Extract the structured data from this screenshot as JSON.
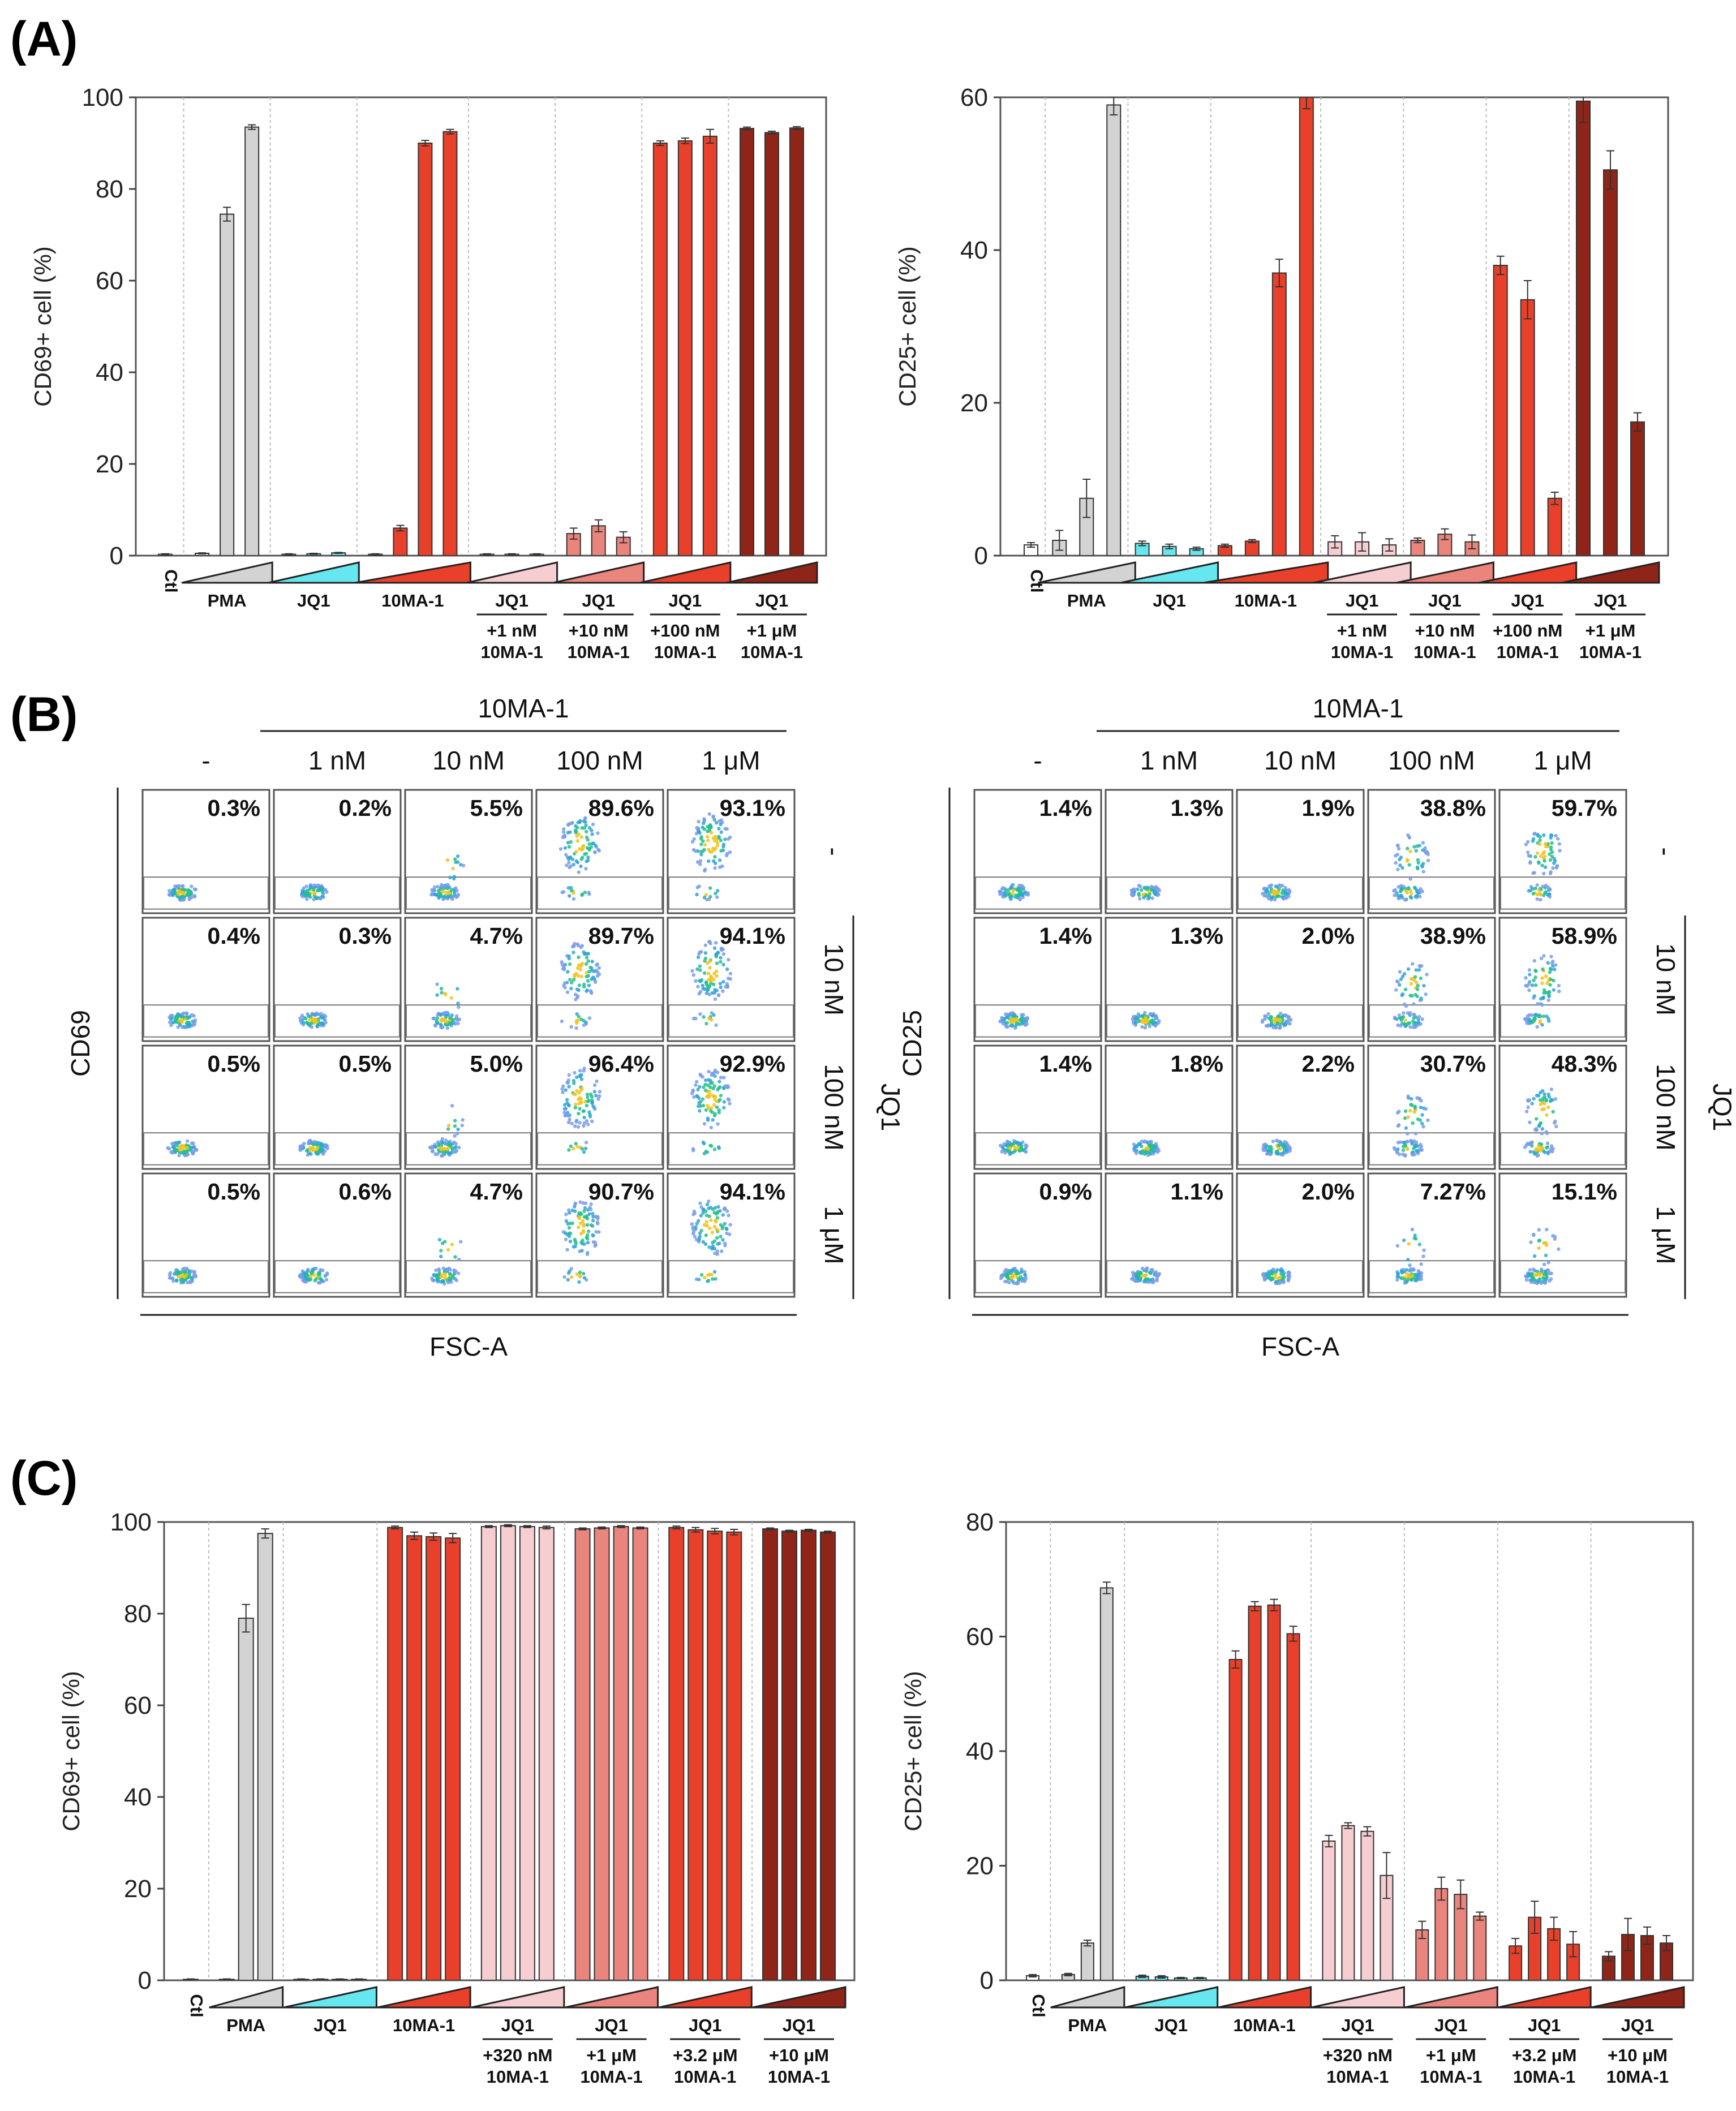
{
  "labels": {
    "a": "(A)",
    "b": "(B)",
    "c": "(C)"
  },
  "colors": {
    "Ctl": "#ffffff",
    "PMA": "#d3d3d3",
    "JQ1": "#66e6ee",
    "10MA-1": "#e8402a",
    "lightpink": "#f6cdd0",
    "salmon": "#e9857c",
    "red": "#e8402a",
    "darkred": "#8f2418"
  },
  "chart_data": [
    {
      "id": "a1",
      "panel": "A",
      "type": "bar",
      "ylabel": "CD69+ cell (%)",
      "ylim": [
        0,
        100
      ],
      "yticks": [
        0,
        20,
        40,
        60,
        80,
        100
      ],
      "groups": [
        {
          "name": "Ctl",
          "sub": [],
          "color": "Ctl",
          "values": [
            0.3
          ],
          "errors": [
            0.1
          ]
        },
        {
          "name": "PMA",
          "sub": [],
          "color": "PMA",
          "values": [
            0.5,
            74.5,
            93.5
          ],
          "errors": [
            0.1,
            1.5,
            0.5
          ]
        },
        {
          "name": "JQ1",
          "sub": [],
          "color": "JQ1",
          "values": [
            0.3,
            0.4,
            0.6
          ],
          "errors": [
            0.1,
            0.1,
            0.1
          ]
        },
        {
          "name": "10MA-1",
          "sub": [],
          "color": "10MA-1",
          "values": [
            0.3,
            6.0,
            90.0,
            92.5
          ],
          "errors": [
            0.1,
            0.6,
            0.6,
            0.5
          ]
        },
        {
          "name": "JQ1",
          "sub": [
            "+1 nM",
            "10MA-1"
          ],
          "color": "lightpink",
          "values": [
            0.3,
            0.3,
            0.3
          ],
          "errors": [
            0.1,
            0.1,
            0.1
          ]
        },
        {
          "name": "JQ1",
          "sub": [
            "+10 nM",
            "10MA-1"
          ],
          "color": "salmon",
          "values": [
            4.8,
            6.5,
            4.0
          ],
          "errors": [
            1.2,
            1.3,
            1.2
          ]
        },
        {
          "name": "JQ1",
          "sub": [
            "+100 nM",
            "10MA-1"
          ],
          "color": "red",
          "values": [
            90.0,
            90.5,
            91.5
          ],
          "errors": [
            0.5,
            0.6,
            1.5
          ]
        },
        {
          "name": "JQ1",
          "sub": [
            "+1 μM",
            "10MA-1"
          ],
          "color": "darkred",
          "values": [
            93.2,
            92.3,
            93.3
          ],
          "errors": [
            0.3,
            0.3,
            0.3
          ]
        }
      ]
    },
    {
      "id": "a2",
      "panel": "A",
      "type": "bar",
      "ylabel": "CD25+ cell (%)",
      "ylim": [
        0,
        60
      ],
      "yticks": [
        0,
        20,
        40,
        60
      ],
      "groups": [
        {
          "name": "Ctl",
          "sub": [],
          "color": "Ctl",
          "values": [
            1.4
          ],
          "errors": [
            0.3
          ]
        },
        {
          "name": "PMA",
          "sub": [],
          "color": "PMA",
          "values": [
            2.0,
            7.5,
            59.0
          ],
          "errors": [
            1.3,
            2.5,
            1.3
          ]
        },
        {
          "name": "JQ1",
          "sub": [],
          "color": "JQ1",
          "values": [
            1.6,
            1.2,
            0.9
          ],
          "errors": [
            0.3,
            0.3,
            0.2
          ]
        },
        {
          "name": "10MA-1",
          "sub": [],
          "color": "10MA-1",
          "values": [
            1.3,
            1.9,
            37.0,
            60.0
          ],
          "errors": [
            0.2,
            0.2,
            1.8,
            1.5
          ]
        },
        {
          "name": "JQ1",
          "sub": [
            "+1 nM",
            "10MA-1"
          ],
          "color": "lightpink",
          "values": [
            1.8,
            1.8,
            1.4
          ],
          "errors": [
            0.8,
            1.2,
            0.8
          ]
        },
        {
          "name": "JQ1",
          "sub": [
            "+10 nM",
            "10MA-1"
          ],
          "color": "salmon",
          "values": [
            2.0,
            2.8,
            1.8
          ],
          "errors": [
            0.3,
            0.7,
            0.9
          ]
        },
        {
          "name": "JQ1",
          "sub": [
            "+100 nM",
            "10MA-1"
          ],
          "color": "red",
          "values": [
            38.0,
            33.5,
            7.5
          ],
          "errors": [
            1.2,
            2.5,
            0.8
          ]
        },
        {
          "name": "JQ1",
          "sub": [
            "+1 μM",
            "10MA-1"
          ],
          "color": "darkred",
          "values": [
            59.5,
            50.5,
            17.5
          ],
          "errors": [
            2.8,
            2.5,
            1.2
          ]
        }
      ]
    },
    {
      "id": "c1",
      "panel": "C",
      "type": "bar",
      "ylabel": "CD69+ cell (%)",
      "ylim": [
        0,
        100
      ],
      "yticks": [
        0,
        20,
        40,
        60,
        80,
        100
      ],
      "groups": [
        {
          "name": "Ctl",
          "sub": [],
          "color": "Ctl",
          "values": [
            0.2
          ],
          "errors": [
            0.1
          ]
        },
        {
          "name": "PMA",
          "sub": [],
          "color": "PMA",
          "values": [
            0.2,
            79.0,
            97.5
          ],
          "errors": [
            0.1,
            3.0,
            1.0
          ]
        },
        {
          "name": "JQ1",
          "sub": [],
          "color": "JQ1",
          "values": [
            0.2,
            0.2,
            0.2,
            0.2
          ],
          "errors": [
            0.1,
            0.1,
            0.1,
            0.1
          ]
        },
        {
          "name": "10MA-1",
          "sub": [],
          "color": "10MA-1",
          "values": [
            98.8,
            97.0,
            96.8,
            96.5
          ],
          "errors": [
            0.3,
            0.8,
            0.8,
            1.0
          ]
        },
        {
          "name": "JQ1",
          "sub": [
            "+320 nM",
            "10MA-1"
          ],
          "color": "lightpink",
          "values": [
            99.0,
            99.2,
            99.0,
            98.8
          ],
          "errors": [
            0.2,
            0.2,
            0.2,
            0.3
          ]
        },
        {
          "name": "JQ1",
          "sub": [
            "+1 μM",
            "10MA-1"
          ],
          "color": "salmon",
          "values": [
            98.5,
            98.7,
            99.0,
            98.7
          ],
          "errors": [
            0.2,
            0.2,
            0.2,
            0.2
          ]
        },
        {
          "name": "JQ1",
          "sub": [
            "+3.2 μM",
            "10MA-1"
          ],
          "color": "red",
          "values": [
            98.8,
            98.3,
            98.0,
            97.8
          ],
          "errors": [
            0.3,
            0.5,
            0.6,
            0.6
          ]
        },
        {
          "name": "JQ1",
          "sub": [
            "+10 μM",
            "10MA-1"
          ],
          "color": "darkred",
          "values": [
            98.5,
            98.0,
            98.2,
            97.8
          ],
          "errors": [
            0.2,
            0.2,
            0.2,
            0.2
          ]
        }
      ]
    },
    {
      "id": "c2",
      "panel": "C",
      "type": "bar",
      "ylabel": "CD25+ cell (%)",
      "ylim": [
        0,
        80
      ],
      "yticks": [
        0,
        20,
        40,
        60,
        80
      ],
      "groups": [
        {
          "name": "Ctl",
          "sub": [],
          "color": "Ctl",
          "values": [
            0.8
          ],
          "errors": [
            0.2
          ]
        },
        {
          "name": "PMA",
          "sub": [],
          "color": "PMA",
          "values": [
            1.0,
            6.5,
            68.5
          ],
          "errors": [
            0.2,
            0.5,
            1.0
          ]
        },
        {
          "name": "JQ1",
          "sub": [],
          "color": "JQ1",
          "values": [
            0.7,
            0.6,
            0.4,
            0.4
          ],
          "errors": [
            0.2,
            0.2,
            0.1,
            0.1
          ]
        },
        {
          "name": "10MA-1",
          "sub": [],
          "color": "10MA-1",
          "values": [
            56.0,
            65.3,
            65.5,
            60.5
          ],
          "errors": [
            1.5,
            0.8,
            1.0,
            1.3
          ]
        },
        {
          "name": "JQ1",
          "sub": [
            "+320 nM",
            "10MA-1"
          ],
          "color": "lightpink",
          "values": [
            24.3,
            27.0,
            26.0,
            18.3
          ],
          "errors": [
            1.0,
            0.5,
            0.8,
            4.0
          ]
        },
        {
          "name": "JQ1",
          "sub": [
            "+1 μM",
            "10MA-1"
          ],
          "color": "salmon",
          "values": [
            8.8,
            16.0,
            15.0,
            11.2
          ],
          "errors": [
            1.5,
            2.0,
            2.5,
            0.7
          ]
        },
        {
          "name": "JQ1",
          "sub": [
            "+3.2 μM",
            "10MA-1"
          ],
          "color": "red",
          "values": [
            6.0,
            11.0,
            9.0,
            6.3
          ],
          "errors": [
            1.3,
            2.8,
            2.0,
            2.2
          ]
        },
        {
          "name": "JQ1",
          "sub": [
            "+10 μM",
            "10MA-1"
          ],
          "color": "darkred",
          "values": [
            4.2,
            8.0,
            7.8,
            6.5
          ],
          "errors": [
            0.8,
            2.8,
            1.5,
            1.3
          ]
        }
      ]
    }
  ],
  "flow": [
    {
      "id": "b1",
      "marker": "CD69",
      "xlabel": "FSC-A",
      "header": "10MA-1",
      "columns": [
        "-",
        "1 nM",
        "10 nM",
        "100 nM",
        "1 μM"
      ],
      "row_group": "JQ1",
      "rows": [
        "-",
        "10 nM",
        "100 nM",
        "1 μM"
      ],
      "percents": [
        [
          "0.3%",
          "0.2%",
          "5.5%",
          "89.6%",
          "93.1%"
        ],
        [
          "0.4%",
          "0.3%",
          "4.7%",
          "89.7%",
          "94.1%"
        ],
        [
          "0.5%",
          "0.5%",
          "5.0%",
          "96.4%",
          "92.9%"
        ],
        [
          "0.5%",
          "0.6%",
          "4.7%",
          "90.7%",
          "94.1%"
        ]
      ],
      "positive_fraction": [
        [
          0.003,
          0.002,
          0.055,
          0.896,
          0.931
        ],
        [
          0.004,
          0.003,
          0.047,
          0.897,
          0.941
        ],
        [
          0.005,
          0.005,
          0.05,
          0.964,
          0.929
        ],
        [
          0.005,
          0.006,
          0.047,
          0.907,
          0.941
        ]
      ]
    },
    {
      "id": "b2",
      "marker": "CD25",
      "xlabel": "FSC-A",
      "header": "10MA-1",
      "columns": [
        "-",
        "1 nM",
        "10 nM",
        "100 nM",
        "1 μM"
      ],
      "row_group": "JQ1",
      "rows": [
        "-",
        "10 nM",
        "100 nM",
        "1 μM"
      ],
      "percents": [
        [
          "1.4%",
          "1.3%",
          "1.9%",
          "38.8%",
          "59.7%"
        ],
        [
          "1.4%",
          "1.3%",
          "2.0%",
          "38.9%",
          "58.9%"
        ],
        [
          "1.4%",
          "1.8%",
          "2.2%",
          "30.7%",
          "48.3%"
        ],
        [
          "0.9%",
          "1.1%",
          "2.0%",
          "7.27%",
          "15.1%"
        ]
      ],
      "positive_fraction": [
        [
          0.014,
          0.013,
          0.019,
          0.388,
          0.597
        ],
        [
          0.014,
          0.013,
          0.02,
          0.389,
          0.589
        ],
        [
          0.014,
          0.018,
          0.022,
          0.307,
          0.483
        ],
        [
          0.009,
          0.011,
          0.02,
          0.0727,
          0.151
        ]
      ]
    }
  ]
}
